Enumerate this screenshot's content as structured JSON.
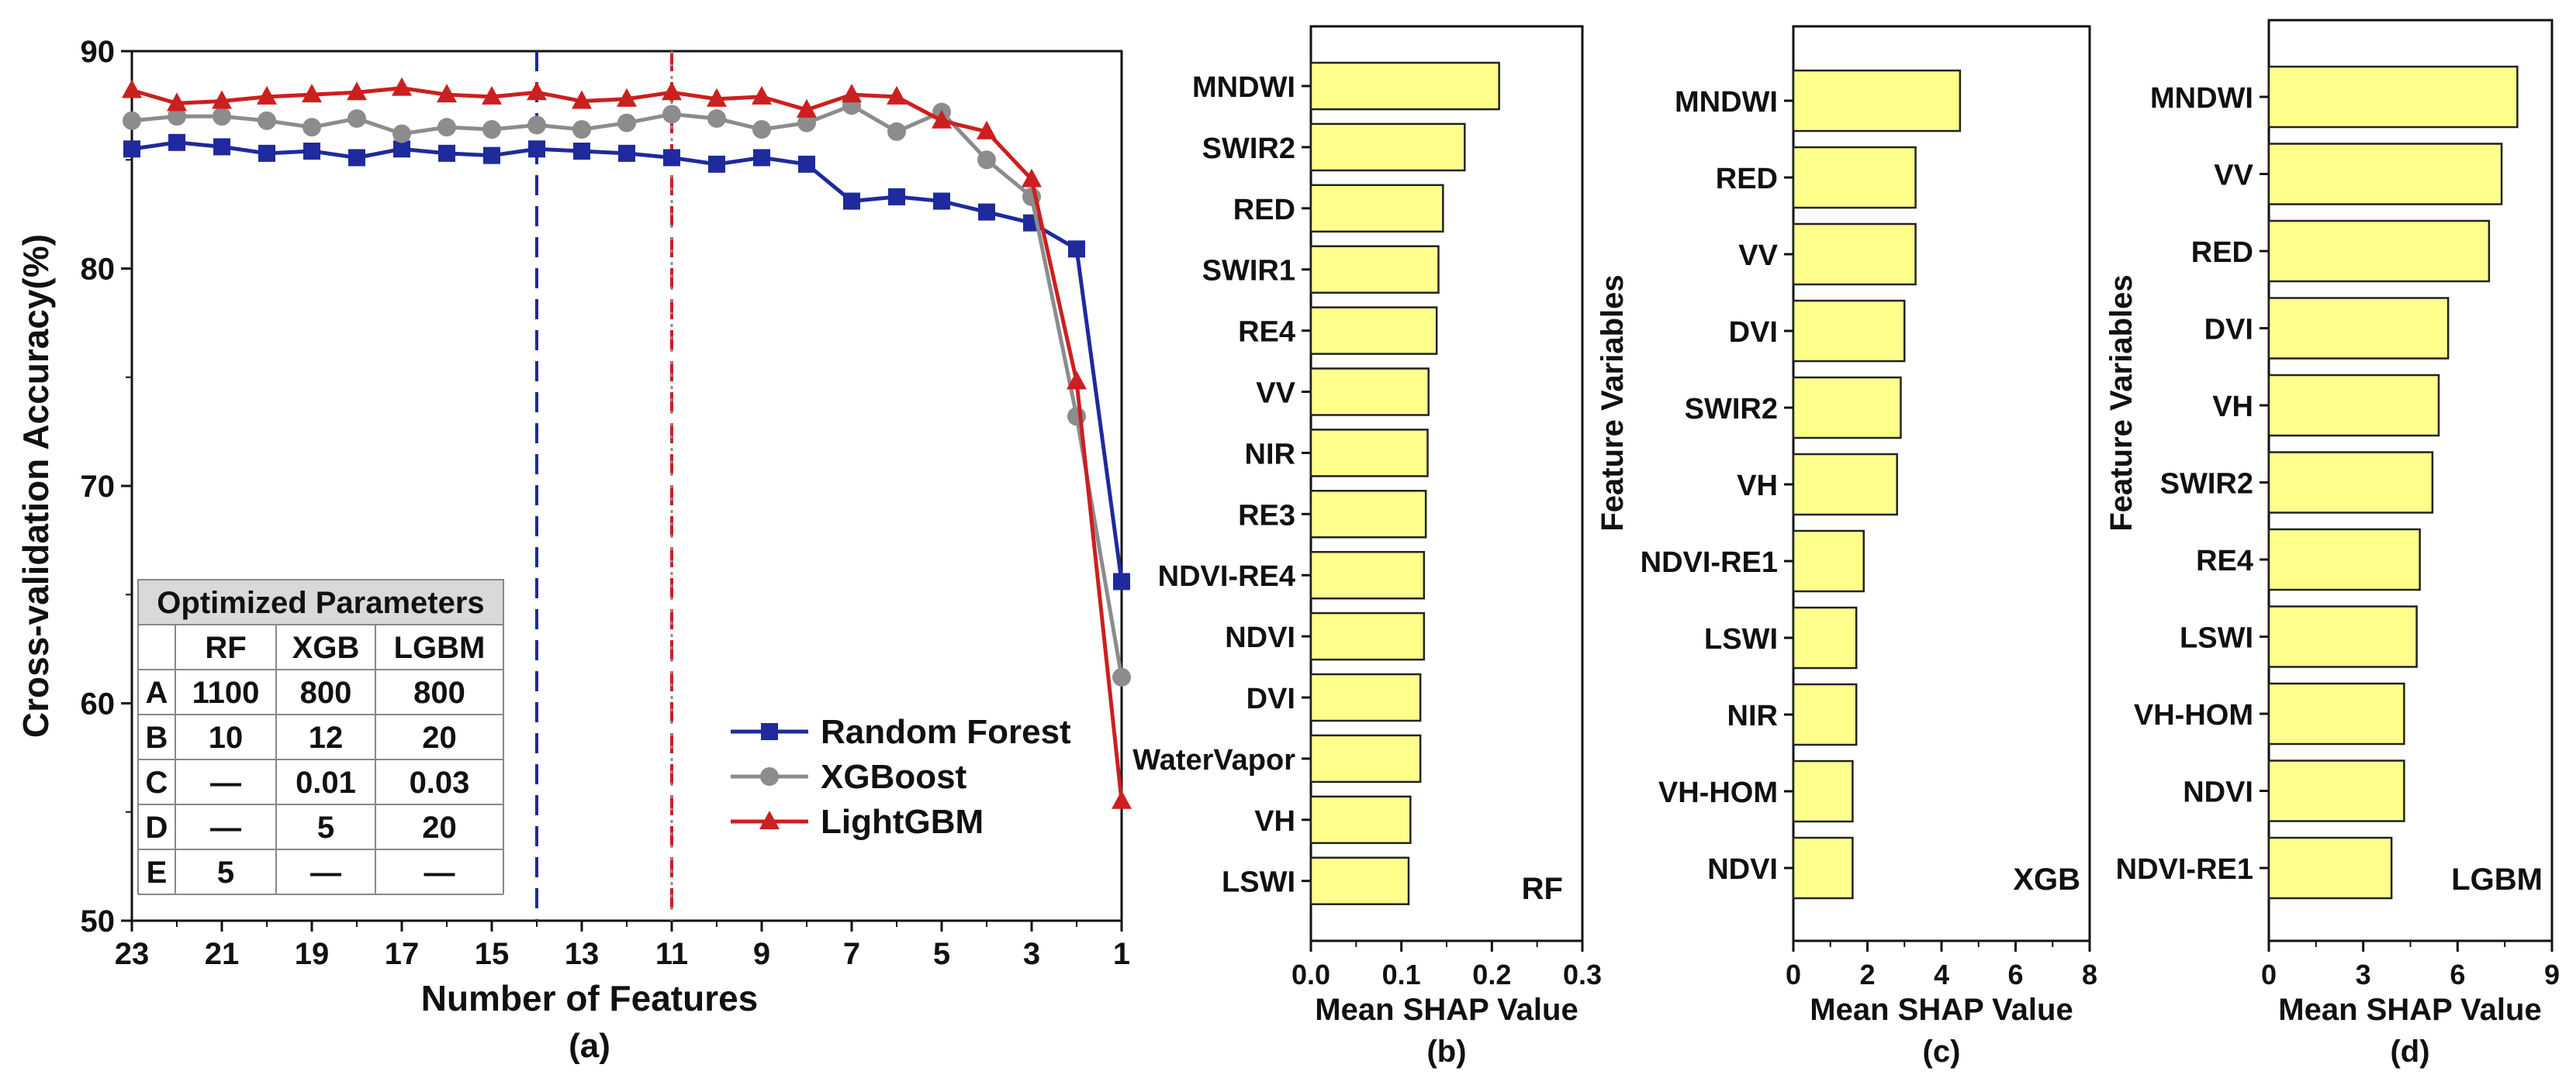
{
  "colors": {
    "rf": "#1f2a9c",
    "xgb": "#8c8c8c",
    "lgbm": "#cc1f1f",
    "bar": "#ffff8c",
    "bar_edge": "#222222",
    "table_header": "#d9d9d9"
  },
  "chart_data": [
    {
      "id": "a",
      "type": "line",
      "panel_label": "(a)",
      "xlabel": "Number of Features",
      "ylabel": "Cross-validation Accuracy(%)",
      "xlim": [
        23,
        1
      ],
      "ylim": [
        50,
        90
      ],
      "xticks": [
        "23",
        "21",
        "19",
        "17",
        "15",
        "13",
        "11",
        "9",
        "7",
        "5",
        "3",
        "1"
      ],
      "yticks": [
        "50",
        "60",
        "70",
        "80",
        "90"
      ],
      "x": [
        23,
        22,
        21,
        20,
        19,
        18,
        17,
        16,
        15,
        14,
        13,
        12,
        11,
        10,
        9,
        8,
        7,
        6,
        5,
        4,
        3,
        2,
        1
      ],
      "series": [
        {
          "name": "Random Forest",
          "marker": "square",
          "values": [
            85.5,
            85.8,
            85.6,
            85.3,
            85.4,
            85.1,
            85.5,
            85.3,
            85.2,
            85.5,
            85.4,
            85.3,
            85.1,
            84.8,
            85.1,
            84.8,
            83.1,
            83.3,
            83.1,
            82.6,
            82.1,
            80.9,
            65.6
          ]
        },
        {
          "name": "XGBoost",
          "marker": "circle",
          "values": [
            86.8,
            87.0,
            87.0,
            86.8,
            86.5,
            86.9,
            86.2,
            86.5,
            86.4,
            86.6,
            86.4,
            86.7,
            87.1,
            86.9,
            86.4,
            86.7,
            87.5,
            86.3,
            87.2,
            85.0,
            83.3,
            73.2,
            61.2
          ]
        },
        {
          "name": "LightGBM",
          "marker": "triangle",
          "values": [
            88.2,
            87.6,
            87.7,
            87.9,
            88.0,
            88.1,
            88.3,
            88.0,
            87.9,
            88.1,
            87.7,
            87.8,
            88.1,
            87.8,
            87.9,
            87.3,
            88.0,
            87.9,
            86.8,
            86.3,
            84.1,
            74.8,
            55.5
          ]
        }
      ],
      "vlines": [
        {
          "x": 14,
          "color_key": "rf",
          "style": "dashed"
        },
        {
          "x": 11,
          "color_key": "lgbm",
          "style": "dashed"
        },
        {
          "x": 11,
          "color_key": "xgb",
          "style": "dotted"
        }
      ],
      "legend_position": "lower-right",
      "table": {
        "title": "Optimized Parameters",
        "columns": [
          "",
          "RF",
          "XGB",
          "LGBM"
        ],
        "rows": [
          [
            "A",
            "1100",
            "800",
            "800"
          ],
          [
            "B",
            "10",
            "12",
            "20"
          ],
          [
            "C",
            "—",
            "0.01",
            "0.03"
          ],
          [
            "D",
            "—",
            "5",
            "20"
          ],
          [
            "E",
            "5",
            "—",
            "—"
          ]
        ]
      }
    },
    {
      "id": "b",
      "type": "bar",
      "orientation": "horizontal",
      "panel_label": "(b)",
      "tag": "RF",
      "xlabel": "Mean SHAP Value",
      "ylabel": "",
      "xlim": [
        0,
        0.3
      ],
      "xticks": [
        "0.0",
        "0.1",
        "0.2",
        "0.3"
      ],
      "categories": [
        "MNDWI",
        "SWIR2",
        "RED",
        "SWIR1",
        "RE4",
        "VV",
        "NIR",
        "RE3",
        "NDVI-RE4",
        "NDVI",
        "DVI",
        "WaterVapor",
        "VH",
        "LSWI"
      ],
      "values": [
        0.208,
        0.17,
        0.146,
        0.141,
        0.139,
        0.13,
        0.129,
        0.127,
        0.125,
        0.125,
        0.121,
        0.121,
        0.11,
        0.108
      ]
    },
    {
      "id": "c",
      "type": "bar",
      "orientation": "horizontal",
      "panel_label": "(c)",
      "tag": "XGB",
      "xlabel": "Mean SHAP Value",
      "ylabel": "Feature Variables",
      "xlim": [
        0,
        8
      ],
      "xticks": [
        "0",
        "2",
        "4",
        "6",
        "8"
      ],
      "categories": [
        "MNDWI",
        "RED",
        "VV",
        "DVI",
        "SWIR2",
        "VH",
        "NDVI-RE1",
        "LSWI",
        "NIR",
        "VH-HOM",
        "NDVI"
      ],
      "values": [
        4.5,
        3.3,
        3.3,
        3.0,
        2.9,
        2.8,
        1.9,
        1.7,
        1.7,
        1.6,
        1.6
      ]
    },
    {
      "id": "d",
      "type": "bar",
      "orientation": "horizontal",
      "panel_label": "(d)",
      "tag": "LGBM",
      "xlabel": "Mean SHAP Value",
      "ylabel": "Feature Variables",
      "xlim": [
        0,
        9
      ],
      "xticks": [
        "0",
        "3",
        "6",
        "9"
      ],
      "categories": [
        "MNDWI",
        "VV",
        "RED",
        "DVI",
        "VH",
        "SWIR2",
        "RE4",
        "LSWI",
        "VH-HOM",
        "NDVI",
        "NDVI-RE1"
      ],
      "values": [
        7.9,
        7.4,
        7.0,
        5.7,
        5.4,
        5.2,
        4.8,
        4.7,
        4.3,
        4.3,
        3.9
      ]
    }
  ]
}
